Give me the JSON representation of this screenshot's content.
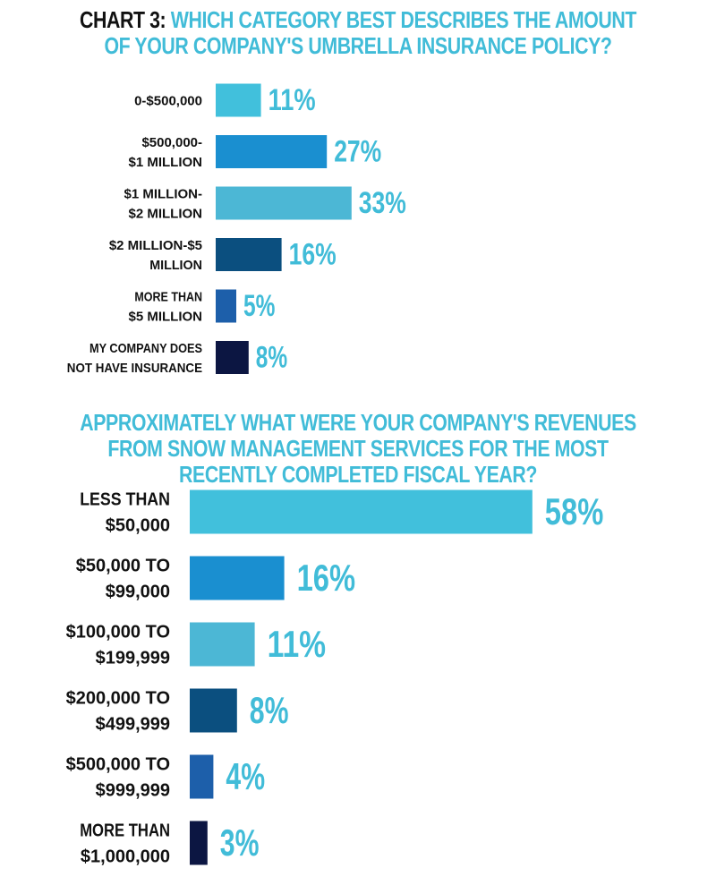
{
  "colors": {
    "accent": "#41bcd8",
    "text": "#111111",
    "bars": [
      "#41c0dc",
      "#1a8fd0",
      "#4cb7d5",
      "#0b4f7f",
      "#1d5faa",
      "#0c1642"
    ]
  },
  "chart_data": [
    {
      "type": "bar",
      "orientation": "horizontal",
      "title_prefix": "CHART 3:",
      "title": "WHICH CATEGORY BEST DESCRIBES THE AMOUNT OF YOUR COMPANY'S UMBRELLA INSURANCE POLICY?",
      "categories": [
        [
          "0-$500,000"
        ],
        [
          "$500,000-",
          "$1 MILLION"
        ],
        [
          "$1 MILLION-",
          "$2 MILLION"
        ],
        [
          "$2 MILLION-$5",
          "MILLION"
        ],
        [
          "MORE THAN",
          "$5 MILLION"
        ],
        [
          "MY COMPANY DOES",
          "NOT HAVE INSURANCE"
        ]
      ],
      "values": [
        11,
        27,
        33,
        16,
        5,
        8
      ],
      "labels": [
        "11%",
        "27%",
        "33%",
        "16%",
        "5%",
        "8%"
      ],
      "unit": "%"
    },
    {
      "type": "bar",
      "orientation": "horizontal",
      "title_prefix": "",
      "title": "APPROXIMATELY WHAT WERE YOUR COMPANY'S REVENUES FROM SNOW MANAGEMENT SERVICES FOR THE MOST RECENTLY COMPLETED FISCAL YEAR?",
      "categories": [
        [
          "LESS THAN",
          "$50,000"
        ],
        [
          "$50,000 TO",
          "$99,000"
        ],
        [
          "$100,000 TO",
          "$199,999"
        ],
        [
          "$200,000 TO",
          "$499,999"
        ],
        [
          "$500,000 TO",
          "$999,999"
        ],
        [
          "MORE THAN",
          "$1,000,000"
        ]
      ],
      "values": [
        58,
        16,
        11,
        8,
        4,
        3
      ],
      "labels": [
        "58%",
        "16%",
        "11%",
        "8%",
        "4%",
        "3%"
      ],
      "unit": "%"
    }
  ]
}
